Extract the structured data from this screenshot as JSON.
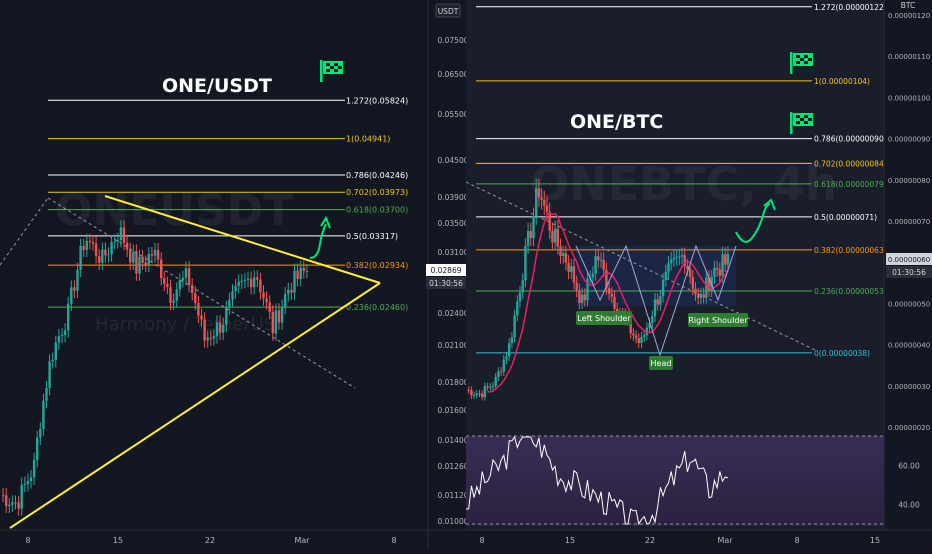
{
  "left_chart": {
    "pair_title": "ONE/USDT",
    "watermark": "ONEUSDT",
    "watermark_sub": "Harmony / TetherUS",
    "axis_unit": "USDT",
    "price_badge": "0.02869",
    "time_badge": "01:30:56",
    "flag_icon": "checkered-flag-icon"
  },
  "right_chart": {
    "pair_title": "ONE/BTC",
    "watermark": "ONEBTC, 4h",
    "axis_unit": "BTC",
    "price_badge": "0.00000060",
    "time_badge": "01:30:56",
    "pattern_labels": {
      "left": "Left Shoulder",
      "head": "Head",
      "right": "Right Shoulder"
    },
    "flag_icon": "checkered-flag-icon"
  },
  "colors": {
    "background": "#131722",
    "fib_white": "#ffffff",
    "fib_yellow": "#f5c518",
    "fib_green": "#4caf50",
    "fib_orange": "#ff9800",
    "fib_cyan": "#26c6da",
    "triangle": "#ffeb3b",
    "candle_up": "#26a69a",
    "candle_down": "#ef5350",
    "ma_line": "#e91e63",
    "arrow": "#00e676",
    "rsi_bg": "#2a2140"
  },
  "chart_data": [
    {
      "type": "candlestick",
      "title": "ONE/USDT",
      "x_ticks": [
        "8",
        "15",
        "22",
        "Mar",
        "8"
      ],
      "y_ticks": [
        0.075,
        0.065,
        0.055,
        0.045,
        0.039,
        0.035,
        0.031,
        0.024,
        0.021,
        0.018,
        0.016,
        0.014,
        0.0126,
        0.0112,
        0.01
      ],
      "y_tick_labels": [
        "0.07500",
        "0.06500",
        "0.05500",
        "0.04500",
        "0.03900",
        "0.03500",
        "0.03100",
        "0.02400",
        "0.02100",
        "0.01800",
        "0.01600",
        "0.01400",
        "0.01260",
        "0.01120",
        "0.01000"
      ],
      "fib_levels": [
        {
          "ratio": "1.272",
          "label": "1.272(0.05824)",
          "value": 0.05824,
          "color": "#ffffff"
        },
        {
          "ratio": "1",
          "label": "1(0.04941)",
          "value": 0.04941,
          "color": "#f5c518"
        },
        {
          "ratio": "0.786",
          "label": "0.786(0.04246)",
          "value": 0.04246,
          "color": "#ffffff"
        },
        {
          "ratio": "0.702",
          "label": "0.702(0.03973)",
          "value": 0.03973,
          "color": "#f5c518"
        },
        {
          "ratio": "0.618",
          "label": "0.618(0.03700)",
          "value": 0.037,
          "color": "#4caf50"
        },
        {
          "ratio": "0.5",
          "label": "0.5(0.03317)",
          "value": 0.03317,
          "color": "#ffffff"
        },
        {
          "ratio": "0.382",
          "label": "0.382(0.02934)",
          "value": 0.02934,
          "color": "#ff9800"
        },
        {
          "ratio": "0.236",
          "label": "0.236(0.02460)",
          "value": 0.0246,
          "color": "#4caf50"
        }
      ],
      "last_price": 0.02869
    },
    {
      "type": "candlestick",
      "title": "ONE/BTC",
      "x_ticks": [
        "8",
        "15",
        "22",
        "Mar",
        "8",
        "15"
      ],
      "y_ticks": [
        1.2e-06,
        1.1e-06,
        1e-06,
        9e-07,
        8e-07,
        7e-07,
        6e-07,
        5e-07,
        4e-07,
        3e-07,
        2e-07
      ],
      "y_tick_labels": [
        "0.00000120",
        "0.00000110",
        "0.00000100",
        "0.00000090",
        "0.00000080",
        "0.00000070",
        "0.00000060",
        "0.00000050",
        "0.00000040",
        "0.00000030",
        "0.00000020"
      ],
      "fib_levels": [
        {
          "ratio": "1.272",
          "label": "1.272(0.00000122)",
          "value": 1.22e-06,
          "color": "#ffffff"
        },
        {
          "ratio": "1",
          "label": "1(0.00000104)",
          "value": 1.04e-06,
          "color": "#f5c518"
        },
        {
          "ratio": "0.786",
          "label": "0.786(0.00000090)",
          "value": 9e-07,
          "color": "#ffffff"
        },
        {
          "ratio": "0.702",
          "label": "0.702(0.00000084)",
          "value": 8.4e-07,
          "color": "#f5c518"
        },
        {
          "ratio": "0.618",
          "label": "0.618(0.00000079)",
          "value": 7.9e-07,
          "color": "#4caf50"
        },
        {
          "ratio": "0.5",
          "label": "0.5(0.00000071)",
          "value": 7.1e-07,
          "color": "#ffffff"
        },
        {
          "ratio": "0.382",
          "label": "0.382(0.00000063)",
          "value": 6.3e-07,
          "color": "#ff9800"
        },
        {
          "ratio": "0.236",
          "label": "0.236(0.00000053)",
          "value": 5.3e-07,
          "color": "#4caf50"
        },
        {
          "ratio": "0",
          "label": "0(0.00000038)",
          "value": 3.8e-07,
          "color": "#26c6da"
        }
      ],
      "last_price": 6e-07,
      "rsi_ticks": [
        60.0,
        40.0
      ],
      "rsi_tick_labels": [
        "60.00",
        "40.00"
      ]
    }
  ]
}
